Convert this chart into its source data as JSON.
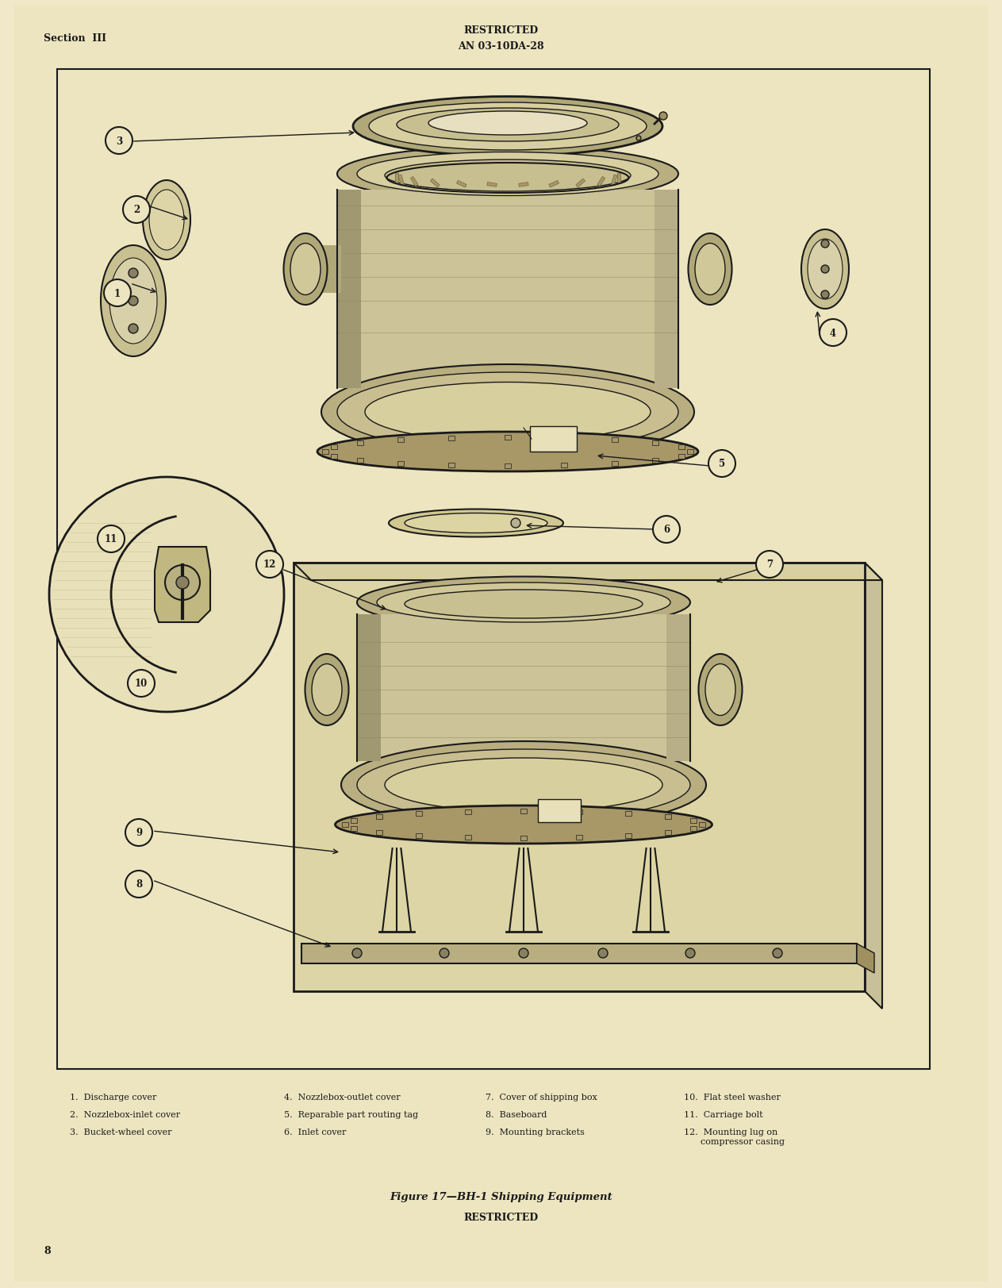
{
  "bg_color": "#f0e8c8",
  "page_bg": "#ede5c0",
  "border_color": "#1a1a1a",
  "text_color": "#1a1a1a",
  "top_left": "Section  III",
  "top_center1": "RESTRICTED",
  "top_center2": "AN 03-10DA-28",
  "bottom_num": "8",
  "bottom_center": "RESTRICTED",
  "caption": "Figure 17—BH-1 Shipping Equipment",
  "legend_col1": [
    "1.  Discharge cover",
    "2.  Nozzlebox-inlet cover",
    "3.  Bucket-wheel cover"
  ],
  "legend_col2": [
    "4.  Nozzlebox-outlet cover",
    "5.  Reparable part routing tag",
    "6.  Inlet cover"
  ],
  "legend_col3": [
    "7.  Cover of shipping box",
    "8.  Baseboard",
    "9.  Mounting brackets"
  ],
  "legend_col4": [
    "10.  Flat steel washer",
    "11.  Carriage bolt",
    "12.  Mounting lug on\n      compressor casing"
  ],
  "draw_color": "#c8b878",
  "draw_dark": "#a09060",
  "draw_light": "#ddd0a0",
  "draw_med": "#c0b080"
}
